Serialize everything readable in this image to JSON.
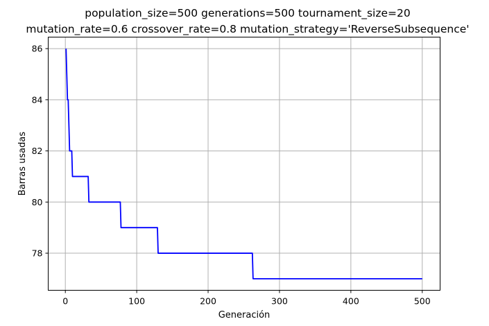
{
  "chart_data": {
    "type": "line",
    "title_lines": [
      "population_size=500 generations=500 tournament_size=20",
      "mutation_rate=0.6 crossover_rate=0.8 mutation_strategy='ReverseSubsequence'"
    ],
    "xlabel": "Generación",
    "ylabel": "Barras usadas",
    "xlim": [
      -24,
      525
    ],
    "ylim": [
      76.55,
      86.45
    ],
    "xticks": [
      0,
      100,
      200,
      300,
      400,
      500
    ],
    "yticks": [
      78,
      80,
      82,
      84,
      86
    ],
    "grid": true,
    "series": [
      {
        "color": "#0000ff",
        "x": [
          1,
          2,
          3,
          4,
          5,
          6,
          7,
          8,
          9,
          10,
          11,
          12,
          32,
          33,
          77,
          78,
          129,
          130,
          262,
          263,
          500
        ],
        "y": [
          86,
          85,
          84,
          84,
          83,
          82,
          82,
          82,
          82,
          81,
          81,
          81,
          81,
          80,
          80,
          79,
          79,
          78,
          78,
          77,
          77
        ]
      }
    ]
  }
}
